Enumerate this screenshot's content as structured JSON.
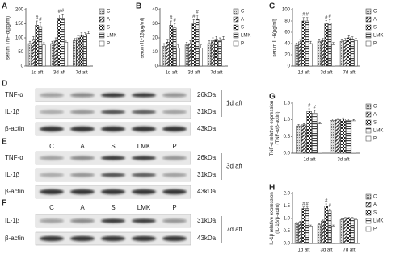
{
  "chart_data": [
    {
      "type": "bar",
      "panel": "A",
      "ylabel": [
        "serum TNF-α(pg/ml)"
      ],
      "categories": [
        "1d aft",
        "3d aft",
        "7d aft"
      ],
      "ylim": [
        0,
        200
      ],
      "yticks": [
        0,
        50,
        100,
        150,
        200
      ],
      "series": [
        {
          "name": "C",
          "pattern": "dots",
          "color": "#333333",
          "values": [
            80,
            80,
            90
          ],
          "errors": [
            8,
            8,
            8
          ]
        },
        {
          "name": "A",
          "pattern": "diag",
          "color": "#333333",
          "values": [
            95,
            92,
            100
          ],
          "errors": [
            10,
            8,
            8
          ]
        },
        {
          "name": "S",
          "pattern": "checker",
          "color": "#333333",
          "values": [
            145,
            170,
            110
          ],
          "errors": [
            15,
            12,
            8
          ],
          "markers": [
            "#",
            "#",
            null
          ]
        },
        {
          "name": "LMK",
          "pattern": "hstripe",
          "color": "#333333",
          "values": [
            140,
            170,
            110
          ],
          "errors": [
            15,
            15,
            8
          ],
          "markers": [
            "#",
            "#",
            null
          ]
        },
        {
          "name": "P",
          "pattern": "plain",
          "color": "#333333",
          "values": [
            75,
            85,
            115
          ],
          "errors": [
            8,
            8,
            8
          ]
        }
      ]
    },
    {
      "type": "bar",
      "panel": "B",
      "ylabel": [
        "serum IL-1β(pg/ml)"
      ],
      "categories": [
        "1d aft",
        "3d aft",
        "7d aft"
      ],
      "ylim": [
        0,
        40
      ],
      "yticks": [
        0,
        10,
        20,
        30,
        40
      ],
      "series": [
        {
          "name": "C",
          "pattern": "dots",
          "color": "#333333",
          "values": [
            14,
            15,
            16
          ],
          "errors": [
            2,
            2,
            2
          ]
        },
        {
          "name": "A",
          "pattern": "diag",
          "color": "#333333",
          "values": [
            17,
            16,
            18
          ],
          "errors": [
            2,
            2,
            2
          ]
        },
        {
          "name": "S",
          "pattern": "checker",
          "color": "#333333",
          "values": [
            29,
            30,
            19
          ],
          "errors": [
            3,
            3,
            2
          ],
          "markers": [
            "#",
            "#",
            null
          ]
        },
        {
          "name": "LMK",
          "pattern": "hstripe",
          "color": "#333333",
          "values": [
            27,
            33,
            18
          ],
          "errors": [
            3,
            3,
            2
          ],
          "markers": [
            "#",
            "#",
            null
          ]
        },
        {
          "name": "P",
          "pattern": "plain",
          "color": "#333333",
          "values": [
            13,
            13,
            19
          ],
          "errors": [
            2,
            2,
            2
          ]
        }
      ]
    },
    {
      "type": "bar",
      "panel": "C",
      "ylabel": [
        "serum IL-6(pg/ml)"
      ],
      "categories": [
        "1d aft",
        "3d aft",
        "7d aft"
      ],
      "ylim": [
        0,
        100
      ],
      "yticks": [
        0,
        20,
        40,
        60,
        80,
        100
      ],
      "series": [
        {
          "name": "C",
          "pattern": "dots",
          "color": "#333333",
          "values": [
            37,
            44,
            44
          ],
          "errors": [
            4,
            4,
            4
          ]
        },
        {
          "name": "A",
          "pattern": "diag",
          "color": "#333333",
          "values": [
            43,
            45,
            45
          ],
          "errors": [
            4,
            4,
            4
          ]
        },
        {
          "name": "S",
          "pattern": "checker",
          "color": "#333333",
          "values": [
            80,
            75,
            50
          ],
          "errors": [
            6,
            6,
            4
          ],
          "markers": [
            "#",
            "#",
            null
          ]
        },
        {
          "name": "LMK",
          "pattern": "hstripe",
          "color": "#333333",
          "values": [
            80,
            76,
            48
          ],
          "errors": [
            6,
            6,
            4
          ],
          "markers": [
            "#",
            "#",
            null
          ]
        },
        {
          "name": "P",
          "pattern": "plain",
          "color": "#333333",
          "values": [
            40,
            38,
            45
          ],
          "errors": [
            4,
            4,
            4
          ]
        }
      ]
    },
    {
      "type": "bar",
      "panel": "G",
      "ylabel": [
        "TNF-α relative expression",
        "(TNF-α/β-actin)"
      ],
      "categories": [
        "1d aft",
        "3d aft"
      ],
      "ylim": [
        0,
        1.5
      ],
      "yticks": [
        {
          "value": 0,
          "label": "0.0"
        },
        0.5,
        {
          "value": 1,
          "label": "1.0"
        },
        1.5
      ],
      "series": [
        {
          "name": "C",
          "pattern": "dots",
          "color": "#333333",
          "values": [
            0.82,
            0.98
          ],
          "errors": [
            0.04,
            0.04
          ]
        },
        {
          "name": "A",
          "pattern": "diag",
          "color": "#333333",
          "values": [
            0.85,
            1.0
          ],
          "errors": [
            0.04,
            0.04
          ]
        },
        {
          "name": "S",
          "pattern": "checker",
          "color": "#333333",
          "values": [
            1.25,
            1.02
          ],
          "errors": [
            0.08,
            0.04
          ],
          "markers": [
            "#",
            null
          ]
        },
        {
          "name": "LMK",
          "pattern": "hstripe",
          "color": "#333333",
          "values": [
            1.2,
            0.98
          ],
          "errors": [
            0.08,
            0.04
          ],
          "markers": [
            "#",
            null
          ]
        },
        {
          "name": "P",
          "pattern": "plain",
          "color": "#333333",
          "values": [
            0.88,
            0.97
          ],
          "errors": [
            0.05,
            0.04
          ]
        }
      ]
    },
    {
      "type": "bar",
      "panel": "H",
      "ylabel": [
        "IL-1β relative expression",
        "(IL-1β/β-actin)"
      ],
      "categories": [
        "1d aft",
        "3d aft",
        "7d aft"
      ],
      "ylim": [
        0,
        2
      ],
      "yticks": [
        {
          "value": 0,
          "label": "0.0"
        },
        0.5,
        {
          "value": 1,
          "label": "1.0"
        },
        1.5,
        {
          "value": 2,
          "label": "2.0"
        }
      ],
      "series": [
        {
          "name": "C",
          "pattern": "dots",
          "color": "#333333",
          "values": [
            0.8,
            0.75,
            0.95
          ],
          "errors": [
            0.04,
            0.04,
            0.04
          ]
        },
        {
          "name": "A",
          "pattern": "diag",
          "color": "#333333",
          "values": [
            0.85,
            0.9,
            1.0
          ],
          "errors": [
            0.04,
            0.04,
            0.04
          ]
        },
        {
          "name": "S",
          "pattern": "checker",
          "color": "#333333",
          "values": [
            1.4,
            1.5,
            1.0
          ],
          "errors": [
            0.06,
            0.08,
            0.04
          ],
          "markers": [
            "#",
            "#",
            null
          ]
        },
        {
          "name": "LMK",
          "pattern": "hstripe",
          "color": "#333333",
          "values": [
            1.4,
            1.3,
            1.0
          ],
          "errors": [
            0.06,
            0.08,
            0.04
          ],
          "markers": [
            "#",
            "#",
            null
          ]
        },
        {
          "name": "P",
          "pattern": "plain",
          "color": "#333333",
          "values": [
            0.7,
            0.7,
            0.95
          ],
          "errors": [
            0.04,
            0.04,
            0.04
          ]
        }
      ]
    }
  ],
  "blots": [
    {
      "panel": "D",
      "timepoint": "1d aft",
      "rows": [
        {
          "protein": "TNF-α",
          "size": "26kDa"
        },
        {
          "protein": "IL-1β",
          "size": "31kDa"
        },
        {
          "protein": "β-actin",
          "size": "43kDa"
        }
      ]
    },
    {
      "panel": "E",
      "timepoint": "3d aft",
      "lanes": [
        "C",
        "A",
        "S",
        "LMK",
        "P"
      ],
      "rows": [
        {
          "protein": "TNF-α",
          "size": "26kDa"
        },
        {
          "protein": "IL-1β",
          "size": "31kDa"
        },
        {
          "protein": "β-actin",
          "size": "43kDa"
        }
      ]
    },
    {
      "panel": "F",
      "timepoint": "7d aft",
      "lanes": [
        "C",
        "A",
        "S",
        "LMK",
        "P"
      ],
      "rows": [
        {
          "protein": "IL-1β",
          "size": "31kDa"
        },
        {
          "protein": "β-actin",
          "size": "43kDa"
        }
      ]
    }
  ]
}
